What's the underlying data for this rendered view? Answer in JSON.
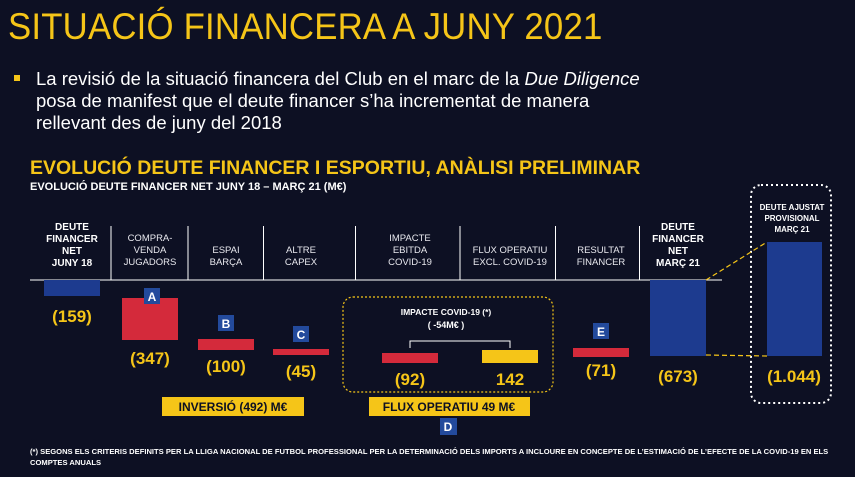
{
  "slide": {
    "title": "SITUACIÓ FINANCERA A JUNY 2021",
    "bullet_lines": [
      "La revisió de la situació financera del Club en el marc de la ",
      "Due Diligence",
      "posa de manifest que el deute financer s’ha incrementat de manera",
      "rellevant des de juny del 2018"
    ],
    "section_title": "EVOLUCIÓ DEUTE FINANCER I ESPORTIU, ANÀLISI PRELIMINAR",
    "footnote": "(*) SEGONS ELS CRITERIS DEFINITS PER LA LLIGA NACIONAL DE FUTBOL PROFESSIONAL PER LA DETERMINACIÓ DELS IMPORTS A INCLOURE EN CONCEPTE DE L’ESTIMACIÓ DE L’EFECTE DE LA COVID-19 EN ELS COMPTES ANUALS"
  },
  "colors": {
    "background": "#0d1023",
    "accent_yellow": "#f5c518",
    "total_blue": "#1d3b8f",
    "negative_red": "#d42a3b",
    "positive_yellow": "#f5c518",
    "marker_blue": "#234a9c"
  },
  "chart_data": {
    "type": "bar",
    "subtitle": "EVOLUCIÓ DEUTE FINANCER NET JUNY 18 – MARÇ 21 (M€)",
    "unit": "M€",
    "categories": [
      "DEUTE FINANCER NET JUNY 18",
      "COMPRA-VENDA JUGADORS",
      "ESPAI BARÇA",
      "ALTRE CAPEX",
      "IMPACTE EBITDA COVID-19",
      "FLUX OPERATIU EXCL. COVID-19",
      "RESULTAT FINANCER",
      "DEUTE FINANCER NET MARÇ 21",
      "DEUTE AJUSTAT PROVISIONAL MARÇ 21"
    ],
    "bars": [
      {
        "label_lines": [
          "DEUTE",
          "FINANCER",
          "NET",
          "JUNY 18"
        ],
        "value": -159,
        "value_label": "(159)",
        "kind": "total",
        "bold": true
      },
      {
        "label_lines": [
          "COMPRA-",
          "VENDA",
          "JUGADORS"
        ],
        "value": -347,
        "value_label": "(347)",
        "kind": "decrease",
        "marker": "A"
      },
      {
        "label_lines": [
          "ESPAI",
          "BARÇA"
        ],
        "value": -100,
        "value_label": "(100)",
        "kind": "decrease",
        "marker": "B"
      },
      {
        "label_lines": [
          "ALTRE",
          "CAPEX"
        ],
        "value": -45,
        "value_label": "(45)",
        "kind": "decrease",
        "marker": "C"
      },
      {
        "label_lines": [
          "IMPACTE",
          "EBITDA",
          "COVID-19"
        ],
        "value": -92,
        "value_label": "(92)",
        "kind": "decrease"
      },
      {
        "label_lines": [
          "FLUX OPERATIU",
          "EXCL. COVID-19"
        ],
        "value": 142,
        "value_label": "142",
        "kind": "increase"
      },
      {
        "label_lines": [
          "RESULTAT",
          "FINANCER"
        ],
        "value": -71,
        "value_label": "(71)",
        "kind": "decrease",
        "marker": "E"
      },
      {
        "label_lines": [
          "DEUTE",
          "FINANCER",
          "NET",
          "MARÇ 21"
        ],
        "value": -673,
        "value_label": "(673)",
        "kind": "total",
        "bold": true
      },
      {
        "label_lines": [
          "DEUTE AJUSTAT",
          "PROVISIONAL",
          "MARÇ 21"
        ],
        "value": -1044,
        "value_label": "(1.044)",
        "kind": "adjusted_total",
        "bold": true
      }
    ],
    "covid_box": {
      "title": "IMPACTE COVID-19 (*)",
      "value_label": "( -54M€ )",
      "value": -54
    },
    "group_labels": [
      {
        "text": "INVERSIÓ (492) M€",
        "value": -492
      },
      {
        "text": "FLUX OPERATIU 49 M€",
        "value": 49,
        "marker": "D"
      }
    ]
  }
}
